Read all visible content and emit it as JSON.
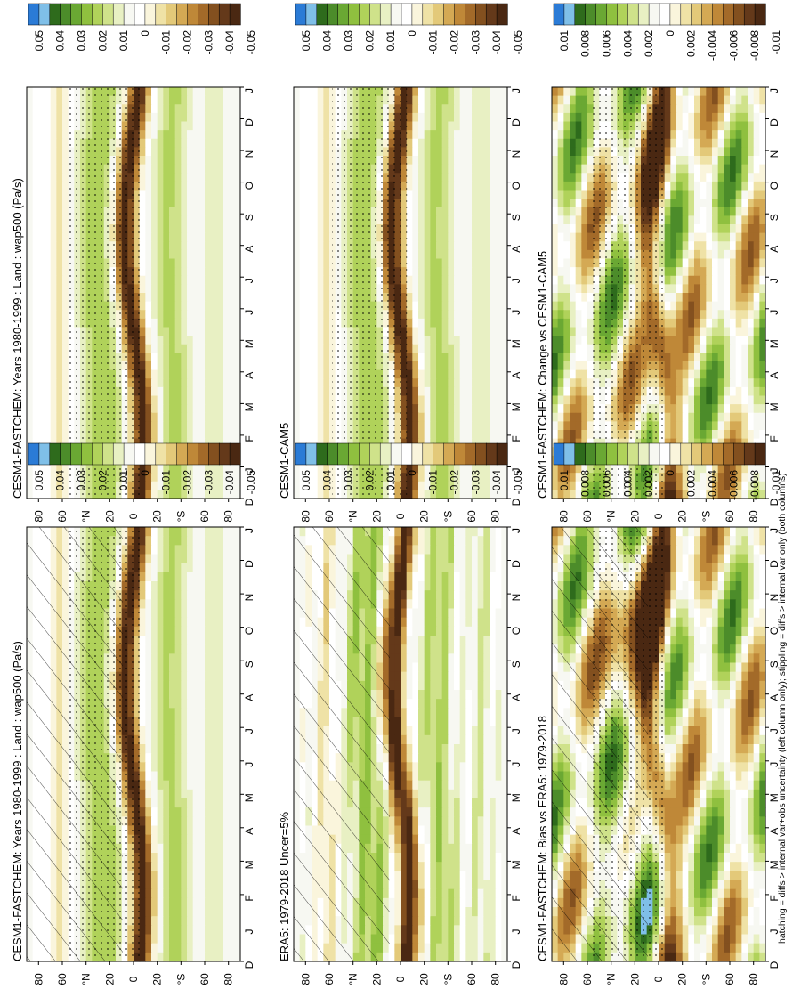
{
  "figure": {
    "footnote": "hatching = diffs > internal var+obs uncertainty (left column only); stippling = diffs > internal var only (both columns)"
  },
  "axes": {
    "month_ticks": [
      "D",
      "J",
      "F",
      "M",
      "A",
      "M",
      "J",
      "J",
      "A",
      "S",
      "O",
      "N",
      "D",
      "J"
    ],
    "lat_ticks": [
      "80",
      "60",
      "°N",
      "20",
      "0",
      "20",
      "°S",
      "60",
      "80"
    ]
  },
  "colorbars": {
    "full": {
      "colors": [
        "#2b7bd6",
        "#7fbfe8",
        "#2e6b1c",
        "#4c8c2a",
        "#6aa833",
        "#8fc03f",
        "#b0d25a",
        "#cfe28a",
        "#e8f0c3",
        "#f7f8f2",
        "#ffffff",
        "#faf5dc",
        "#efe2a6",
        "#e3c979",
        "#d4a954",
        "#bf8838",
        "#a36a29",
        "#83501f",
        "#64391a",
        "#4a2812"
      ],
      "labels": [
        "0.05",
        "0.04",
        "0.03",
        "0.02",
        "0.01",
        "0",
        "-0.01",
        "-0.02",
        "-0.03",
        "-0.04",
        "-0.05"
      ]
    },
    "diff": {
      "colors": [
        "#2b7bd6",
        "#7fbfe8",
        "#2e6b1c",
        "#4c8c2a",
        "#6aa833",
        "#8fc03f",
        "#b0d25a",
        "#cfe28a",
        "#e8f0c3",
        "#f7f8f2",
        "#ffffff",
        "#faf5dc",
        "#efe2a6",
        "#e3c979",
        "#d4a954",
        "#bf8838",
        "#a36a29",
        "#83501f",
        "#64391a",
        "#4a2812"
      ],
      "labels": [
        "0.01",
        "0.008",
        "0.006",
        "0.004",
        "0.002",
        "0",
        "-0.002",
        "-0.004",
        "-0.006",
        "-0.008",
        "-0.01"
      ]
    }
  },
  "chart_data": [
    {
      "type": "heatmap",
      "title": "CESM1-FASTCHEM: Years 1980-1999 : Land : wap500 (Pa/s)",
      "colorbar": "full",
      "variant": "model",
      "hatching": true,
      "stippling": true
    },
    {
      "type": "heatmap",
      "title": "CESM1-FASTCHEM: Years 1980-1999 : Land : wap500 (Pa/s)",
      "colorbar": "full",
      "variant": "model",
      "hatching": false,
      "stippling": true
    },
    {
      "type": "heatmap",
      "title": "ERA5: 1979-2018 Uncer=5%",
      "colorbar": "full",
      "variant": "obs",
      "hatching": true,
      "stippling": false
    },
    {
      "type": "heatmap",
      "title": "CESM1-CAM5",
      "colorbar": "full",
      "variant": "model",
      "hatching": false,
      "stippling": true
    },
    {
      "type": "heatmap",
      "title": "CESM1-FASTCHEM: Bias vs ERA5: 1979-2018",
      "colorbar": "diff",
      "variant": "bias",
      "hatching": true,
      "stippling": true
    },
    {
      "type": "heatmap",
      "title": "CESM1-FASTCHEM: Change vs CESM1-CAM5",
      "colorbar": "diff",
      "variant": "change",
      "hatching": false,
      "stippling": true
    }
  ]
}
